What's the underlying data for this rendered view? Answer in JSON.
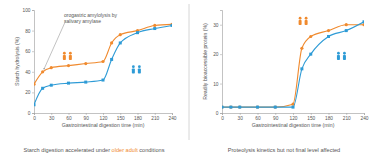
{
  "chart_data": [
    {
      "type": "line",
      "y_label": "Starch hydrolysis (%)",
      "x_label": "Gastrointestinal digestion time (min)",
      "annotation": [
        "orogastric amylolysis by",
        "salivary amylase"
      ],
      "caption": [
        "Starch digestion accelerated under ",
        "older adult",
        " conditions"
      ],
      "x": [
        0,
        15,
        30,
        60,
        90,
        120,
        135,
        150,
        180,
        210,
        240
      ],
      "xlim": [
        0,
        240
      ],
      "xticks": [
        0,
        30,
        60,
        90,
        120,
        150,
        180,
        210,
        240
      ],
      "ylim": [
        0,
        100
      ],
      "yticks": [
        0,
        20,
        40,
        60,
        80,
        100
      ],
      "grid": false,
      "series": [
        {
          "color": "#f08a2e",
          "marker": "circle",
          "values": [
            28,
            40,
            44,
            46,
            48,
            50,
            68,
            76,
            80,
            85,
            86
          ]
        },
        {
          "color": "#2e9bd6",
          "marker": "square",
          "values": [
            8,
            24,
            27,
            29,
            30,
            32,
            52,
            68,
            78,
            82,
            85
          ]
        }
      ]
    },
    {
      "type": "line",
      "y_label": "Readily bioaccessible protein (%)",
      "x_label": "Gastrointestinal digestion time (min)",
      "caption": [
        "Proteolysis kinetics but not final level affected"
      ],
      "x": [
        0,
        15,
        30,
        60,
        90,
        120,
        135,
        150,
        180,
        210,
        240
      ],
      "xlim": [
        0,
        240
      ],
      "xticks": [
        0,
        30,
        60,
        90,
        120,
        150,
        180,
        210,
        240
      ],
      "ylim": [
        0,
        35
      ],
      "yticks": [
        0,
        10,
        20,
        30
      ],
      "grid": false,
      "series": [
        {
          "color": "#f08a2e",
          "marker": "circle",
          "values": [
            2,
            2,
            2,
            2,
            2,
            3,
            22,
            26,
            28,
            30,
            30
          ]
        },
        {
          "color": "#2e9bd6",
          "marker": "square",
          "values": [
            2,
            2,
            2,
            2,
            2,
            2,
            15,
            20,
            26,
            28,
            31
          ]
        }
      ]
    }
  ]
}
